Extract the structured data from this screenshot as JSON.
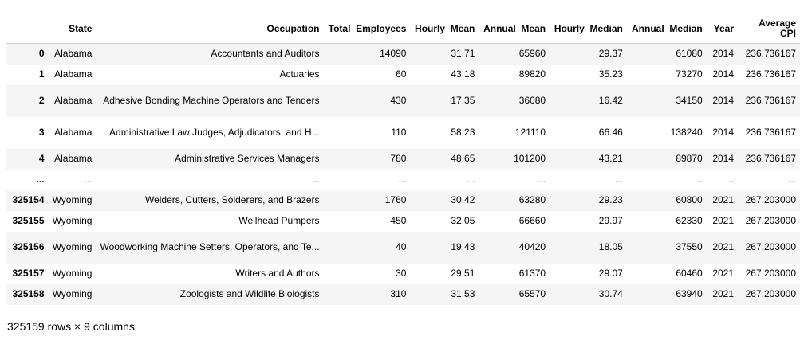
{
  "table": {
    "columns": [
      {
        "key": "state",
        "label": "State"
      },
      {
        "key": "occupation",
        "label": "Occupation"
      },
      {
        "key": "total",
        "label": "Total_Employees"
      },
      {
        "key": "hmean",
        "label": "Hourly_Mean"
      },
      {
        "key": "amean",
        "label": "Annual_Mean"
      },
      {
        "key": "hmed",
        "label": "Hourly_Median"
      },
      {
        "key": "amed",
        "label": "Annual_Median"
      },
      {
        "key": "year",
        "label": "Year"
      },
      {
        "key": "cpi",
        "label": "Average CPI"
      }
    ],
    "rows": [
      {
        "index": "0",
        "state": "Alabama",
        "occupation": "Accountants and Auditors",
        "total": "14090",
        "hmean": "31.71",
        "amean": "65960",
        "hmed": "29.37",
        "amed": "61080",
        "year": "2014",
        "cpi": "236.736167"
      },
      {
        "index": "1",
        "state": "Alabama",
        "occupation": "Actuaries",
        "total": "60",
        "hmean": "43.18",
        "amean": "89820",
        "hmed": "35.23",
        "amed": "73270",
        "year": "2014",
        "cpi": "236.736167"
      },
      {
        "index": "2",
        "state": "Alabama",
        "occupation": "Adhesive Bonding Machine Operators and Tenders",
        "total": "430",
        "hmean": "17.35",
        "amean": "36080",
        "hmed": "16.42",
        "amed": "34150",
        "year": "2014",
        "cpi": "236.736167"
      },
      {
        "index": "3",
        "state": "Alabama",
        "occupation": "Administrative Law Judges, Adjudicators, and H...",
        "total": "110",
        "hmean": "58.23",
        "amean": "121110",
        "hmed": "66.46",
        "amed": "138240",
        "year": "2014",
        "cpi": "236.736167"
      },
      {
        "index": "4",
        "state": "Alabama",
        "occupation": "Administrative Services Managers",
        "total": "780",
        "hmean": "48.65",
        "amean": "101200",
        "hmed": "43.21",
        "amed": "89870",
        "year": "2014",
        "cpi": "236.736167"
      },
      {
        "index": "...",
        "state": "...",
        "occupation": "...",
        "total": "...",
        "hmean": "...",
        "amean": "...",
        "hmed": "...",
        "amed": "...",
        "year": "...",
        "cpi": "..."
      },
      {
        "index": "325154",
        "state": "Wyoming",
        "occupation": "Welders, Cutters, Solderers, and Brazers",
        "total": "1760",
        "hmean": "30.42",
        "amean": "63280",
        "hmed": "29.23",
        "amed": "60800",
        "year": "2021",
        "cpi": "267.203000"
      },
      {
        "index": "325155",
        "state": "Wyoming",
        "occupation": "Wellhead Pumpers",
        "total": "450",
        "hmean": "32.05",
        "amean": "66660",
        "hmed": "29.97",
        "amed": "62330",
        "year": "2021",
        "cpi": "267.203000"
      },
      {
        "index": "325156",
        "state": "Wyoming",
        "occupation": "Woodworking Machine Setters, Operators, and Te...",
        "total": "40",
        "hmean": "19.43",
        "amean": "40420",
        "hmed": "18.05",
        "amed": "37550",
        "year": "2021",
        "cpi": "267.203000"
      },
      {
        "index": "325157",
        "state": "Wyoming",
        "occupation": "Writers and Authors",
        "total": "30",
        "hmean": "29.51",
        "amean": "61370",
        "hmed": "29.07",
        "amed": "60460",
        "year": "2021",
        "cpi": "267.203000"
      },
      {
        "index": "325158",
        "state": "Wyoming",
        "occupation": "Zoologists and Wildlife Biologists",
        "total": "310",
        "hmean": "31.53",
        "amean": "65570",
        "hmed": "30.74",
        "amed": "63940",
        "year": "2021",
        "cpi": "267.203000"
      }
    ],
    "footer": "325159 rows × 9 columns"
  }
}
